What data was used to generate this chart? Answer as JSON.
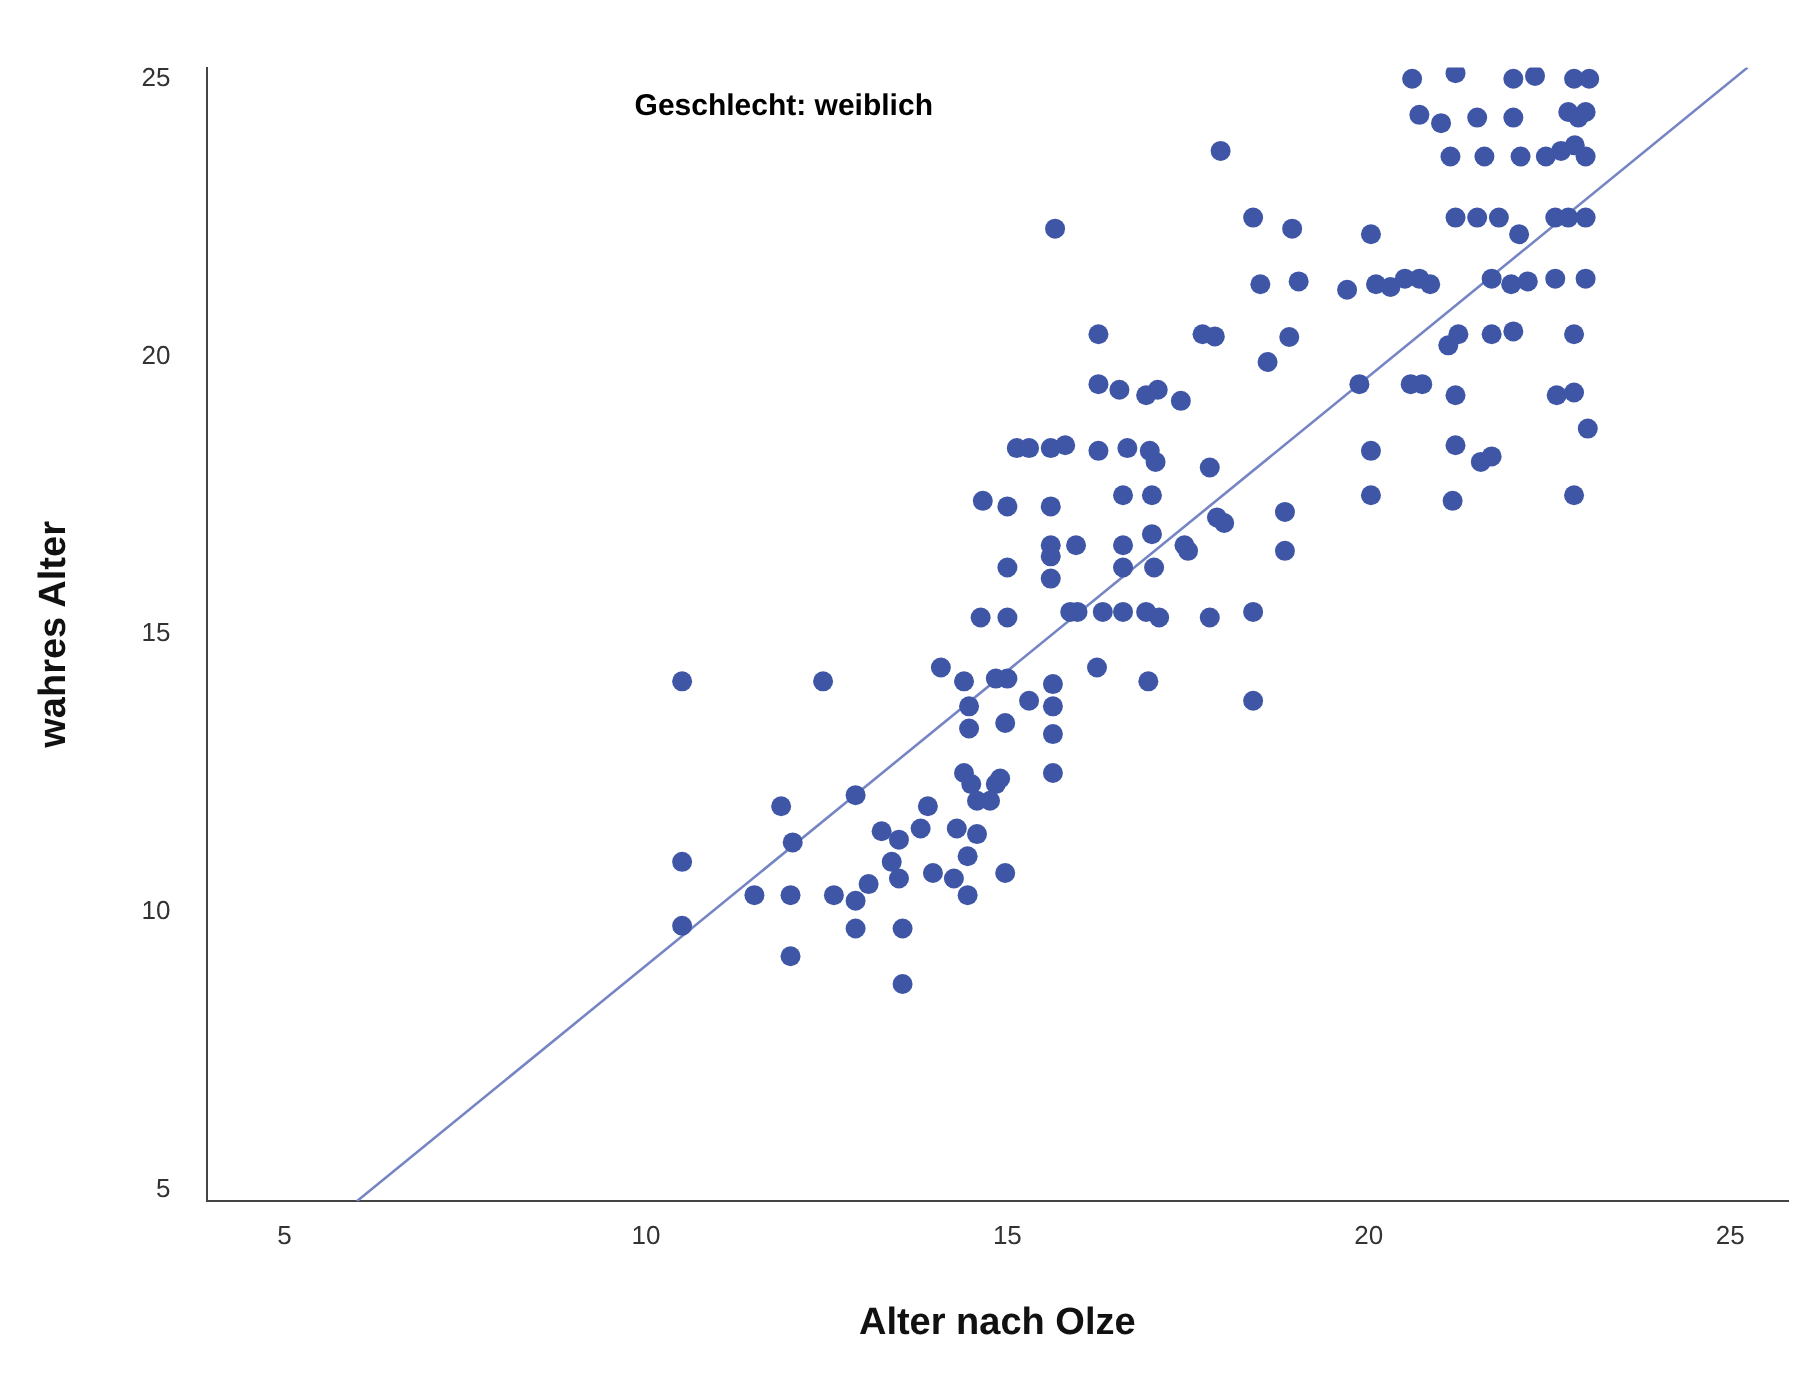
{
  "chart_data": {
    "type": "scatter",
    "title": "Geschlecht: weiblich",
    "xlabel": "Alter nach Olze",
    "ylabel": "wahres Alter",
    "xlim": [
      3.92,
      25.8
    ],
    "ylim": [
      4.79,
      25.2
    ],
    "xticks": [
      5,
      10,
      15,
      20,
      25
    ],
    "yticks": [
      5,
      10,
      15,
      20,
      25
    ],
    "grid": false,
    "legend": false,
    "series": [
      {
        "color": "#3f56a6",
        "marker": "circle",
        "x": [
          10.5,
          10.5,
          10.5,
          11.5,
          11.87,
          12.03,
          12.0,
          12.0,
          12.45,
          12.6,
          12.9,
          12.9,
          12.9,
          13.08,
          13.26,
          13.4,
          13.5,
          13.5,
          13.55,
          13.55,
          13.8,
          13.9,
          13.97,
          14.08,
          14.26,
          14.3,
          14.4,
          14.4,
          14.47,
          14.47,
          14.45,
          14.45,
          14.5,
          14.58,
          14.58,
          14.76,
          14.84,
          14.84,
          14.9,
          14.97,
          14.97,
          15.0,
          15.63,
          15.63,
          15.63,
          15.63,
          15.3,
          14.63,
          15.0,
          14.66,
          15.0,
          15.0,
          15.13,
          15.3,
          15.6,
          15.8,
          15.6,
          15.6,
          15.6,
          15.6,
          15.66,
          15.95,
          15.87,
          15.97,
          16.26,
          16.26,
          16.26,
          16.24,
          16.32,
          16.55,
          16.66,
          16.6,
          16.6,
          16.6,
          16.6,
          16.92,
          16.97,
          17.0,
          17.0,
          16.92,
          16.95,
          17.05,
          17.03,
          17.08,
          17.4,
          17.1,
          17.45,
          17.5,
          17.7,
          17.87,
          17.8,
          17.8,
          17.9,
          18.0,
          17.95,
          18.4,
          18.4,
          18.4,
          18.5,
          18.6,
          18.84,
          18.84,
          18.9,
          18.94,
          19.03,
          19.7,
          20.03,
          19.87,
          20.03,
          20.03,
          20.1,
          20.3,
          20.5,
          20.7,
          20.58,
          20.74,
          20.85,
          20.6,
          20.7,
          21.0,
          21.1,
          21.24,
          21.13,
          21.2,
          21.2,
          21.2,
          21.2,
          21.16,
          21.5,
          21.5,
          21.6,
          21.55,
          21.7,
          21.7,
          21.7,
          21.8,
          22.0,
          22.0,
          21.97,
          22.0,
          22.08,
          22.1,
          22.3,
          22.2,
          22.45,
          22.58,
          22.58,
          22.6,
          22.66,
          22.76,
          22.84,
          22.84,
          22.84,
          22.84,
          23.0,
          23.0,
          23.0,
          23.0,
          23.05,
          23.03,
          22.9,
          22.85,
          22.76
        ],
        "values": [
          14.15,
          10.9,
          9.75,
          10.3,
          11.9,
          11.25,
          10.3,
          9.2,
          14.15,
          10.3,
          12.1,
          10.2,
          9.7,
          10.5,
          11.45,
          10.9,
          11.3,
          10.6,
          9.7,
          8.7,
          11.5,
          11.9,
          10.7,
          14.4,
          10.6,
          11.5,
          14.15,
          12.5,
          13.7,
          13.3,
          11.0,
          10.3,
          12.3,
          12.0,
          11.4,
          12.0,
          12.3,
          14.2,
          12.4,
          13.4,
          10.7,
          14.2,
          13.2,
          12.5,
          13.7,
          14.1,
          13.8,
          15.3,
          15.3,
          17.4,
          17.3,
          16.2,
          18.35,
          18.35,
          18.35,
          18.4,
          17.3,
          16.6,
          16.4,
          16.0,
          22.3,
          16.6,
          15.4,
          15.4,
          20.4,
          19.5,
          18.3,
          14.4,
          15.4,
          19.4,
          18.35,
          17.5,
          16.6,
          16.2,
          15.4,
          19.3,
          18.3,
          17.5,
          16.8,
          15.4,
          14.15,
          18.1,
          16.2,
          19.4,
          19.2,
          15.3,
          16.6,
          16.5,
          20.4,
          20.36,
          18.0,
          15.3,
          17.1,
          17.0,
          23.7,
          22.5,
          15.4,
          13.8,
          21.3,
          19.9,
          17.2,
          16.5,
          20.35,
          22.3,
          21.35,
          21.2,
          22.2,
          19.5,
          18.3,
          17.5,
          21.3,
          21.25,
          21.4,
          21.4,
          19.5,
          19.5,
          21.3,
          25.0,
          24.35,
          24.2,
          20.2,
          20.4,
          23.6,
          25.1,
          22.5,
          19.3,
          18.4,
          17.4,
          24.3,
          22.5,
          23.6,
          18.1,
          18.2,
          20.4,
          21.4,
          22.5,
          25.0,
          24.3,
          21.3,
          20.45,
          22.2,
          23.6,
          25.05,
          21.35,
          23.6,
          21.4,
          22.5,
          19.3,
          23.7,
          24.4,
          25.0,
          20.4,
          19.35,
          17.5,
          22.5,
          21.4,
          23.6,
          24.4,
          25.0,
          18.7,
          24.3,
          23.8,
          22.5
        ]
      },
      {
        "type": "line",
        "marker": "none",
        "color": "#7585c4",
        "x": [
          6.0,
          25.24
        ],
        "values": [
          4.79,
          25.2
        ]
      }
    ]
  }
}
